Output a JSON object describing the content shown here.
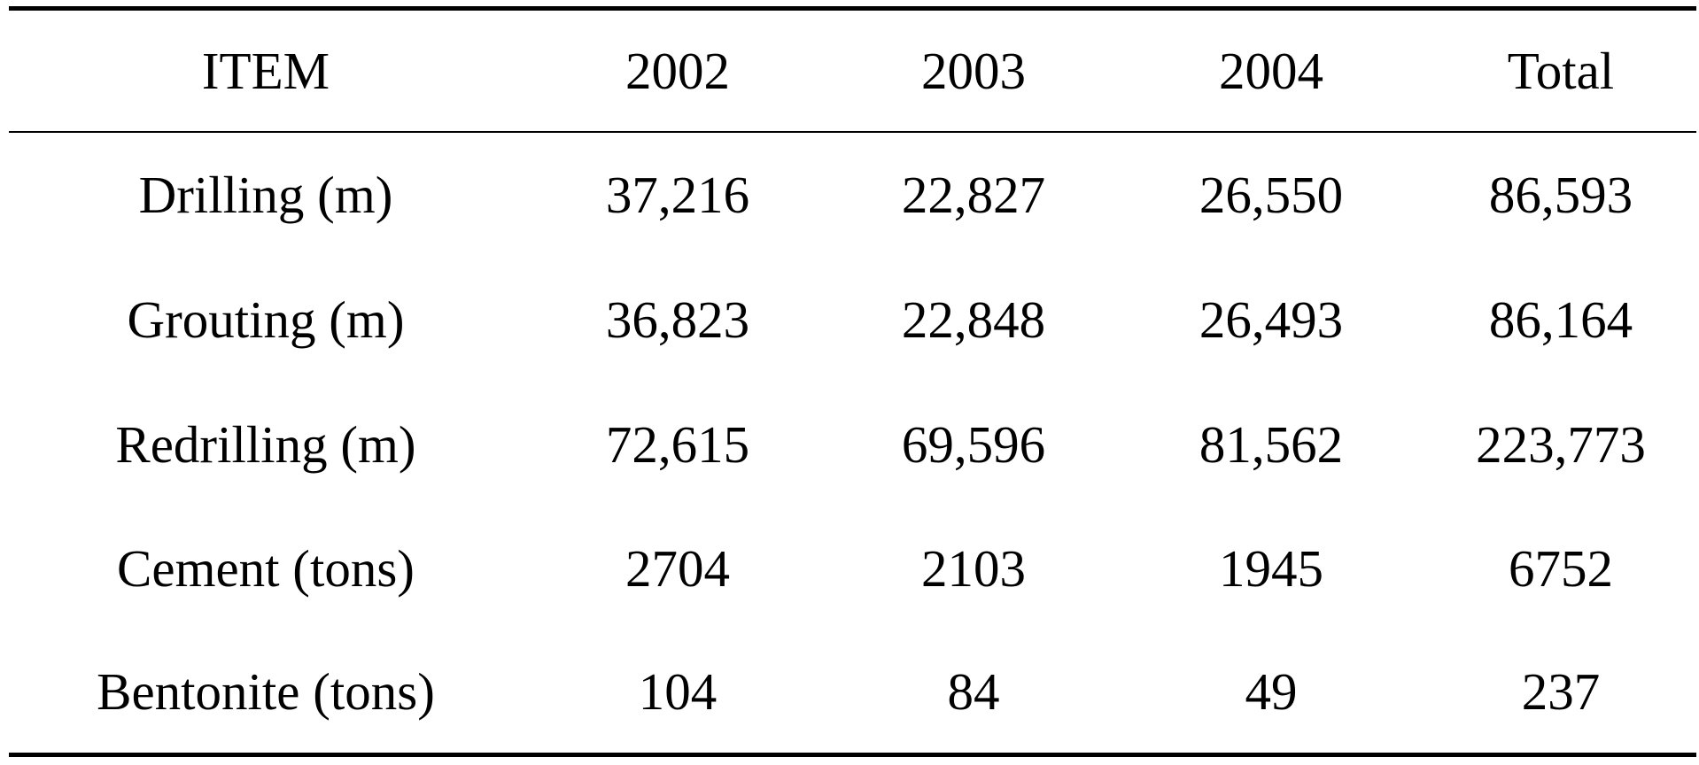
{
  "table": {
    "header": [
      "ITEM",
      "2002",
      "2003",
      "2004",
      "Total"
    ],
    "rows": [
      [
        "Drilling (m)",
        "37,216",
        "22,827",
        "26,550",
        "86,593"
      ],
      [
        "Grouting (m)",
        "36,823",
        "22,848",
        "26,493",
        "86,164"
      ],
      [
        "Redrilling (m)",
        "72,615",
        "69,596",
        "81,562",
        "223,773"
      ],
      [
        "Cement (tons)",
        "2704",
        "2103",
        "1945",
        "6752"
      ],
      [
        "Bentonite (tons)",
        "104",
        "84",
        "49",
        "237"
      ]
    ]
  }
}
